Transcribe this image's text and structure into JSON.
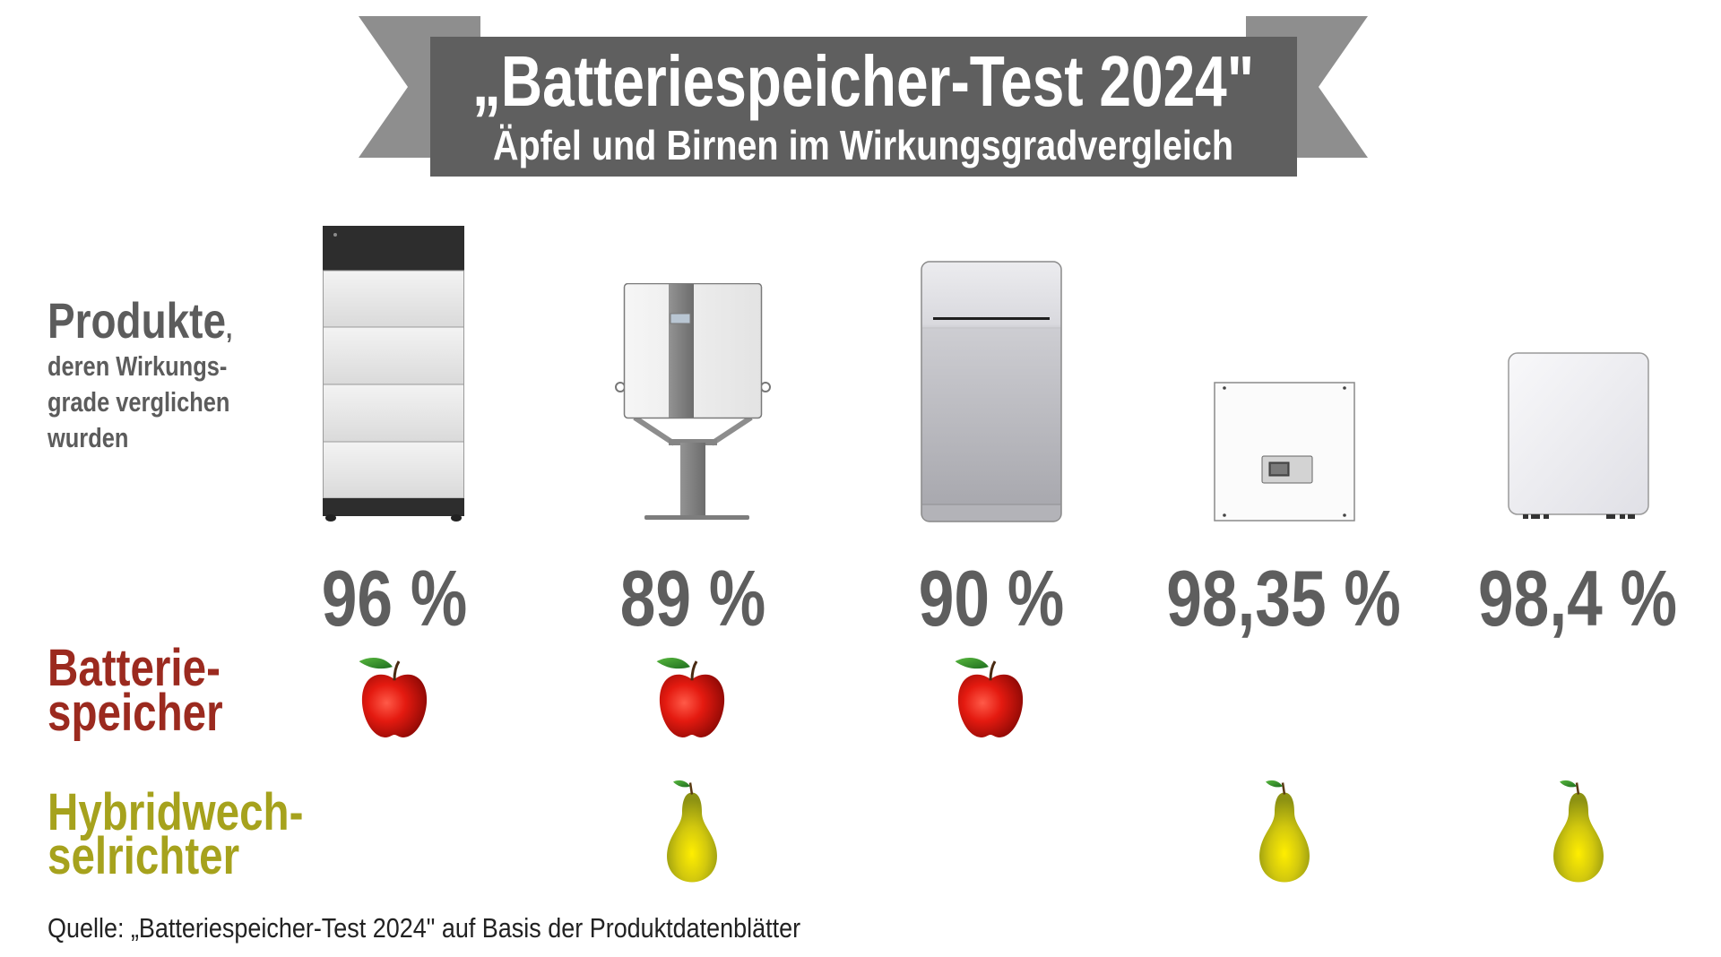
{
  "banner": {
    "title": "„Batteriespeicher-Test 2024\"",
    "subtitle": "Äpfel und Birnen im Wirkungsgradvergleich"
  },
  "row_labels": {
    "products": {
      "heading": "Produkte",
      "comma": ",",
      "lines": [
        "deren Wirkungs-",
        "grade verglichen",
        "wurden"
      ]
    },
    "battery_storage": {
      "lines": [
        "Batterie-",
        "speicher"
      ],
      "icon": "apple-icon"
    },
    "hybrid_inverter": {
      "lines": [
        "Hybridwech-",
        "selrichter"
      ],
      "icon": "pear-icon"
    }
  },
  "products": [
    {
      "image_icon": "battery-tower-icon",
      "efficiency": "96 %",
      "battery_storage": true,
      "hybrid_inverter": false
    },
    {
      "image_icon": "inverter-on-stand-icon",
      "efficiency": "89 %",
      "battery_storage": true,
      "hybrid_inverter": true
    },
    {
      "image_icon": "storage-cabinet-icon",
      "efficiency": "90 %",
      "battery_storage": true,
      "hybrid_inverter": false
    },
    {
      "image_icon": "square-inverter-icon",
      "efficiency": "98,35 %",
      "battery_storage": false,
      "hybrid_inverter": true
    },
    {
      "image_icon": "rounded-inverter-icon",
      "efficiency": "98,4 %",
      "battery_storage": false,
      "hybrid_inverter": true
    }
  ],
  "source": "Quelle: „Batteriespeicher-Test 2024\" auf Basis der Produktdatenblätter",
  "colors": {
    "banner": "#5f5f5f",
    "ribbon_tail": "#8e8e8e",
    "text_gray": "#5c5c5c",
    "battery_red": "#9b2a1f",
    "hybrid_olive": "#a6a21d",
    "apple_red": "#e41a10",
    "pear_yellow": "#d2c80e"
  }
}
